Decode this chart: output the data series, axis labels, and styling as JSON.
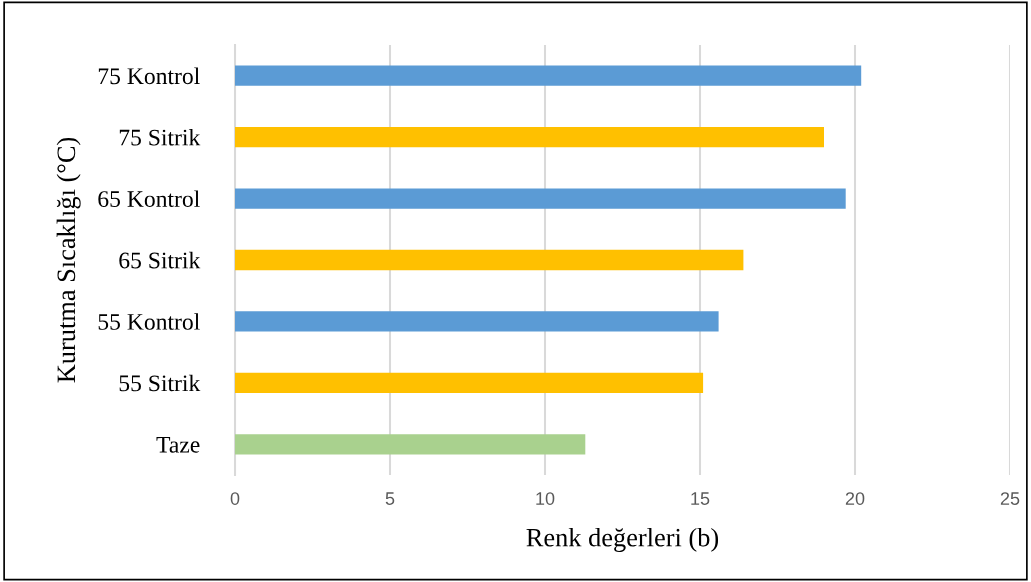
{
  "chart_data": {
    "type": "bar",
    "orientation": "horizontal",
    "categories": [
      "75 Kontrol",
      "75 Sitrik",
      "65 Kontrol",
      "65 Sitrik",
      "55 Kontrol",
      "55 Sitrik",
      "Taze"
    ],
    "values": [
      20.2,
      19.0,
      19.7,
      16.4,
      15.6,
      15.1,
      11.3
    ],
    "colors": [
      "#5b9bd5",
      "#ffc000",
      "#5b9bd5",
      "#ffc000",
      "#5b9bd5",
      "#ffc000",
      "#a9d18e"
    ],
    "xlim": [
      0,
      25
    ],
    "xticks": [
      0,
      5,
      10,
      15,
      20,
      25
    ],
    "grid": "x",
    "xlabel": "Renk değerleri (b)",
    "ylabel": "Kurutma Sıcaklığı (°C)"
  }
}
